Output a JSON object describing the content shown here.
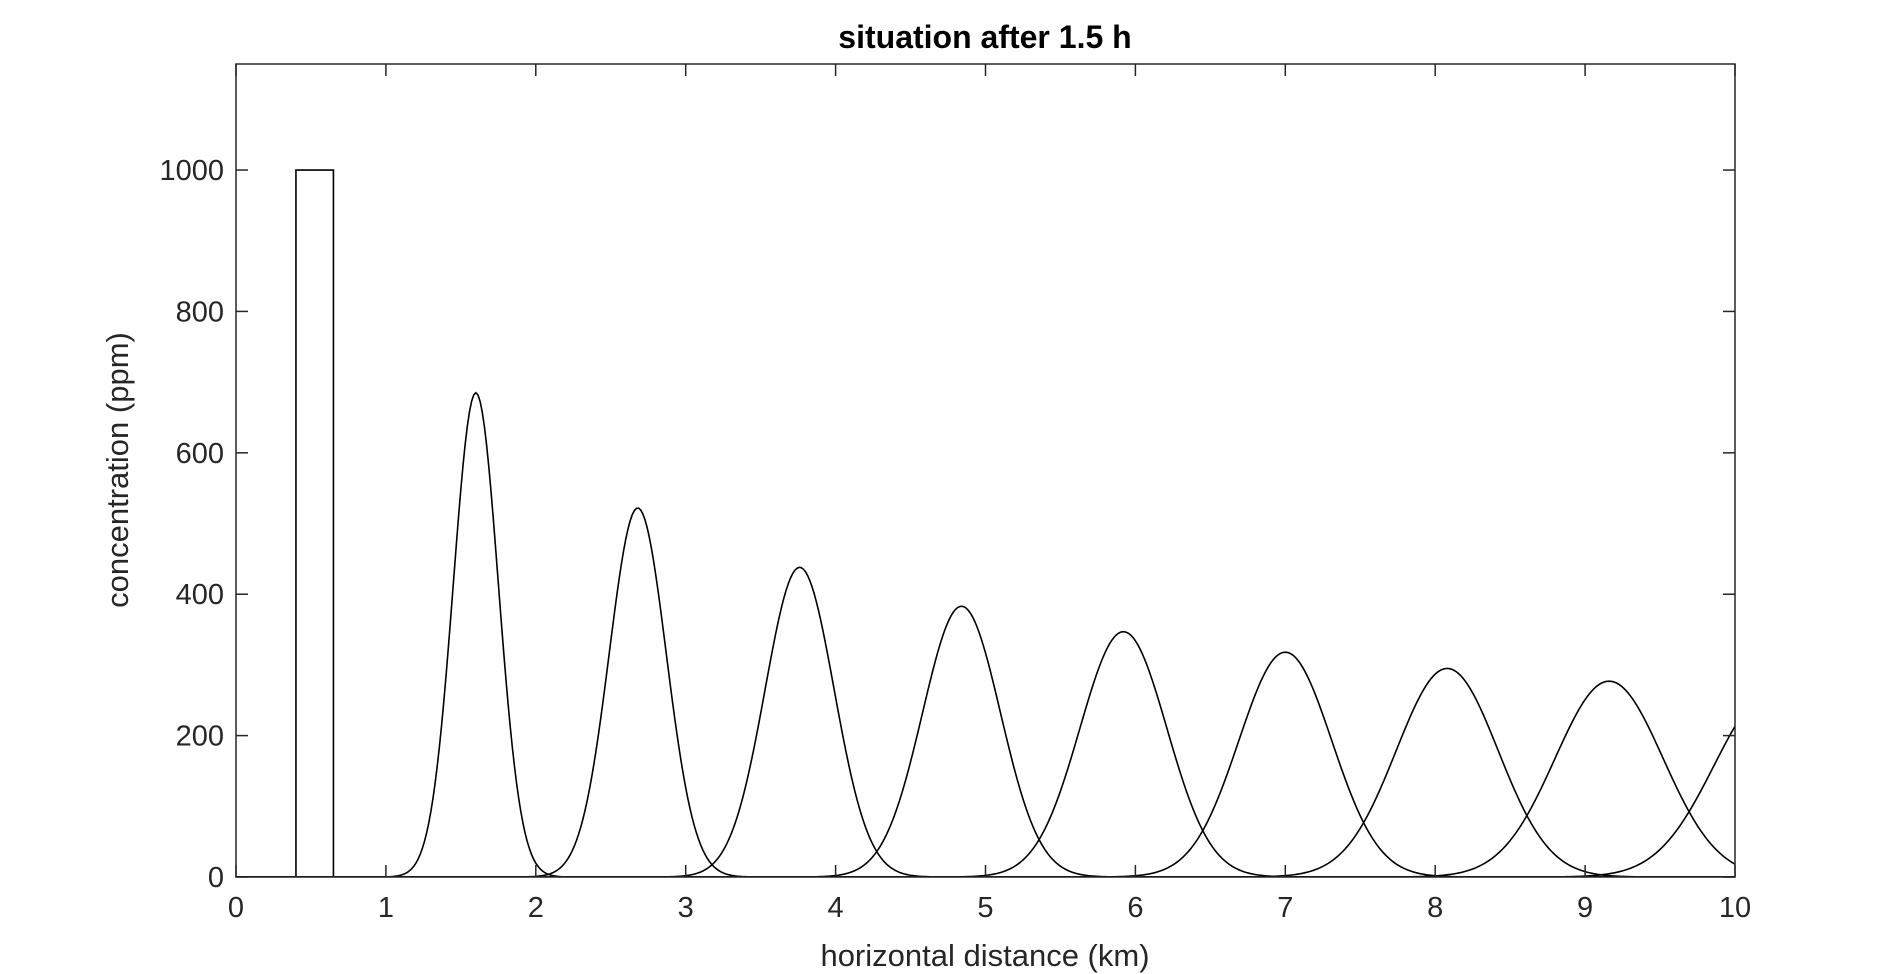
{
  "chart_data": {
    "type": "line",
    "title": "situation after 1.5 h",
    "xlabel": "horizontal distance (km)",
    "ylabel": "concentration (ppm)",
    "xlim": [
      0,
      10
    ],
    "ylim": [
      0,
      1150
    ],
    "x_ticks": [
      "0",
      "1",
      "2",
      "3",
      "4",
      "5",
      "6",
      "7",
      "8",
      "9",
      "10"
    ],
    "y_ticks": [
      "0",
      "200",
      "400",
      "600",
      "800",
      "1000"
    ],
    "grid": false,
    "legend": "none",
    "line_color": "#000000",
    "initial_pulse": {
      "x_start": 0.4,
      "x_end": 0.65,
      "value": 1000
    },
    "peaks": [
      {
        "center": 1.6,
        "peak": 685,
        "sigma": 0.15
      },
      {
        "center": 2.68,
        "peak": 522,
        "sigma": 0.19
      },
      {
        "center": 3.76,
        "peak": 438,
        "sigma": 0.23
      },
      {
        "center": 4.84,
        "peak": 383,
        "sigma": 0.26
      },
      {
        "center": 5.92,
        "peak": 347,
        "sigma": 0.29
      },
      {
        "center": 7.0,
        "peak": 318,
        "sigma": 0.31
      },
      {
        "center": 8.08,
        "peak": 295,
        "sigma": 0.34
      },
      {
        "center": 9.16,
        "peak": 277,
        "sigma": 0.36
      },
      {
        "center": 10.24,
        "peak": 260,
        "sigma": 0.38
      }
    ]
  }
}
